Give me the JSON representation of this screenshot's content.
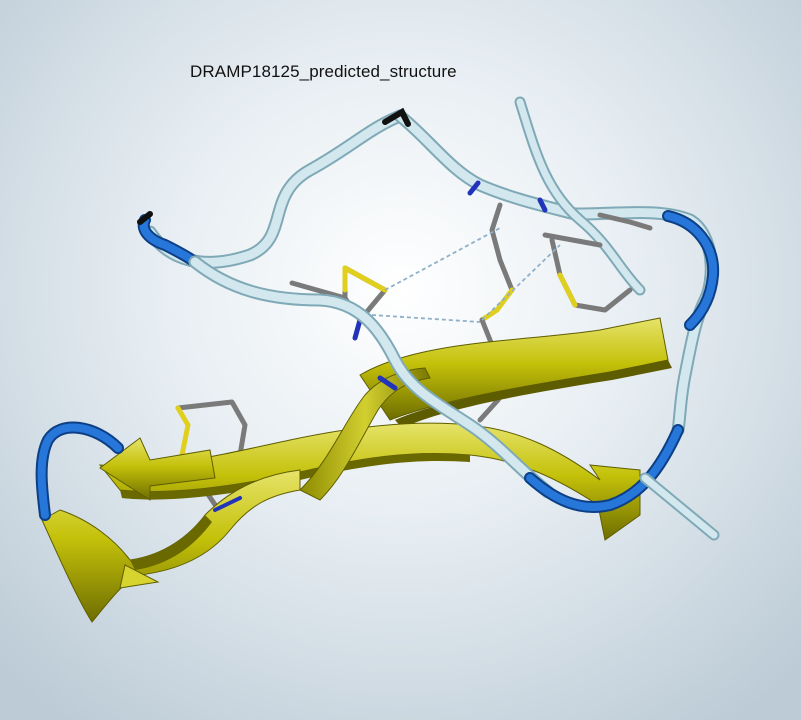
{
  "title": "DRAMP18125_predicted_structure",
  "colors": {
    "coil": "#c9e2ea",
    "coil_dark": "#7fa9b6",
    "turn": "#1f6fd2",
    "strand": "#c9c600",
    "strand_dark": "#6b6a00",
    "stick": "#7a7a7a",
    "sulfur": "#e0cf1d",
    "nitrogen": "#2233bb",
    "hbond": "#8fb0c8"
  },
  "representation": {
    "coil": "tube",
    "sheet": "ribbon-arrow",
    "sidechains": "sticks",
    "bonds": "dashed-lines"
  }
}
